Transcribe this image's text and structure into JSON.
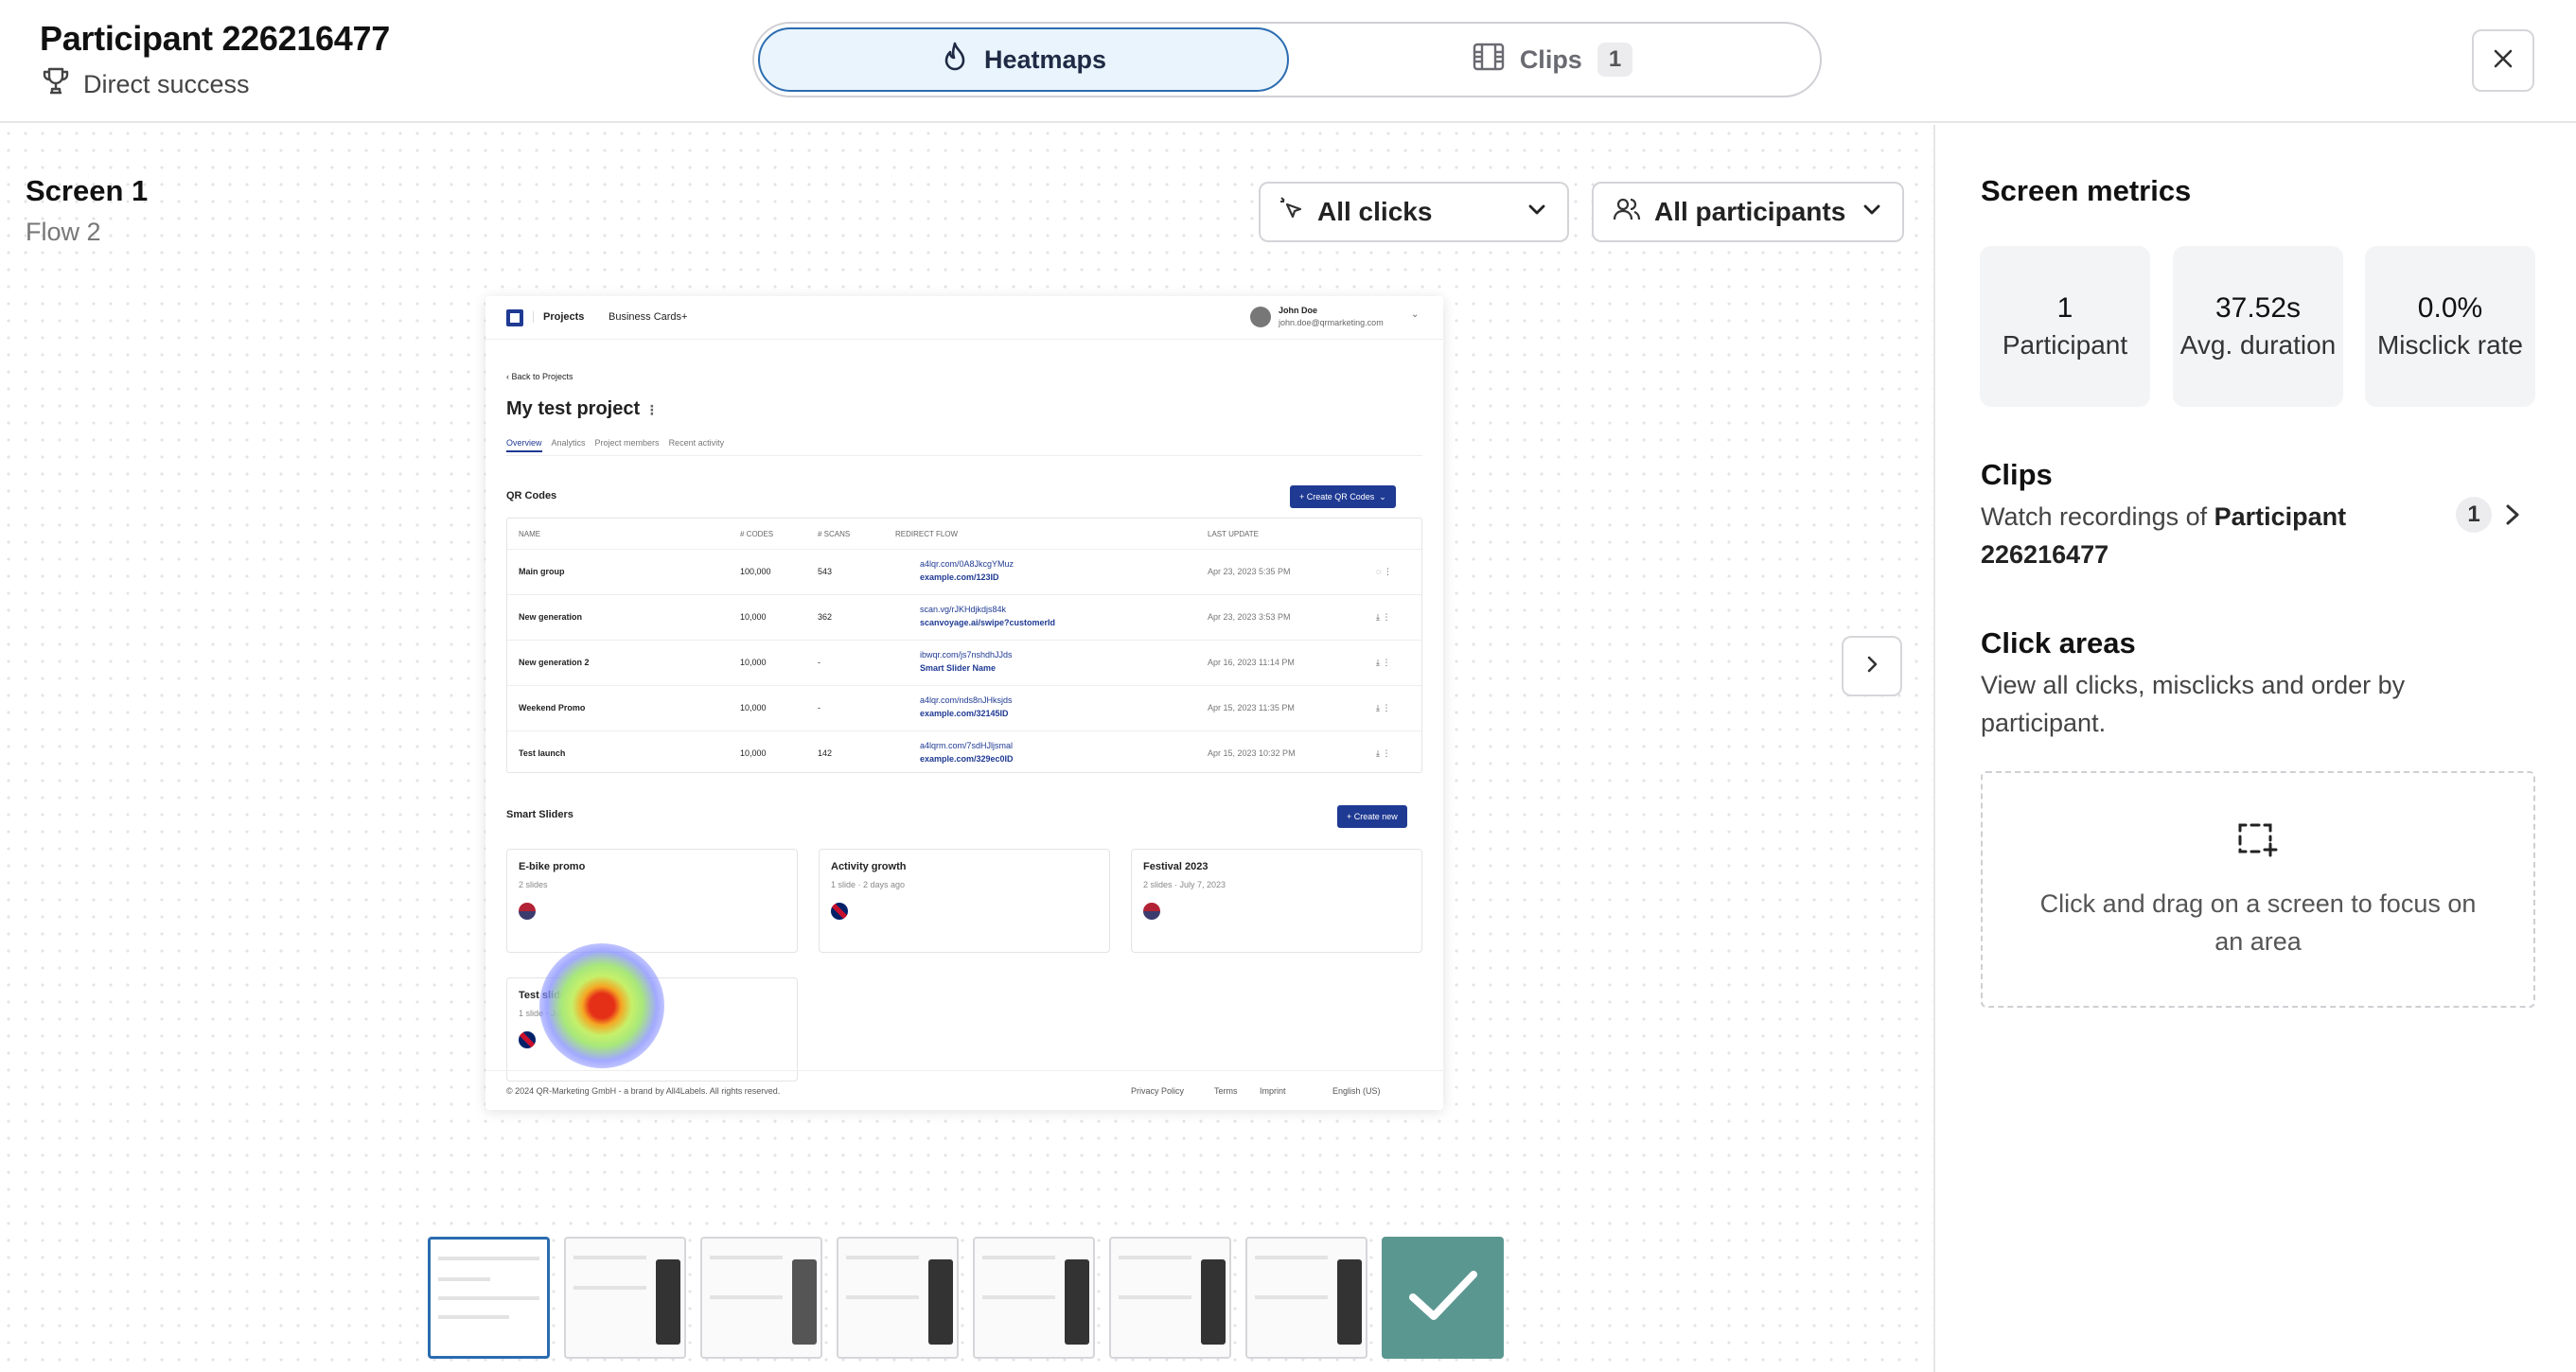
{
  "header": {
    "participant_title": "Participant 226216477",
    "status": "Direct success",
    "tabs": [
      {
        "label": "Heatmaps",
        "active": true
      },
      {
        "label": "Clips",
        "count": "1",
        "active": false
      }
    ]
  },
  "main": {
    "screen_title": "Screen 1",
    "flow": "Flow 2",
    "filters": {
      "clicks": "All clicks",
      "participants": "All participants"
    }
  },
  "mock": {
    "nav": [
      "Projects",
      "Business Cards+"
    ],
    "user_name": "John Doe",
    "user_email": "john.doe@qrmarketing.com",
    "back": "Back to Projects",
    "project_title": "My test project",
    "tabs": [
      "Overview",
      "Analytics",
      "Project members",
      "Recent activity"
    ],
    "qr_section": "QR Codes",
    "create_qr": "+ Create QR Codes",
    "columns": [
      "Name",
      "# Codes",
      "# Scans",
      "Redirect flow",
      "Last update"
    ],
    "rows": [
      {
        "name": "Main group",
        "codes": "100,000",
        "scans": "543",
        "url": "a4lqr.com/0A8JkcgYMuz",
        "flow": "example.com/123ID",
        "date": "Apr 23, 2023 5:35 PM"
      },
      {
        "name": "New generation",
        "codes": "10,000",
        "scans": "362",
        "url": "scan.vg/rJKHdjkdjs84k",
        "flow": "scanvoyage.ai/swipe?customerId",
        "date": "Apr 23, 2023 3:53 PM"
      },
      {
        "name": "New generation 2",
        "codes": "10,000",
        "scans": "-",
        "url": "ibwqr.com/js7nshdhJJds",
        "flow": "Smart Slider Name",
        "date": "Apr 16, 2023 11:14 PM"
      },
      {
        "name": "Weekend Promo",
        "codes": "10,000",
        "scans": "-",
        "url": "a4lqr.com/nds8nJHksjds",
        "flow": "example.com/32145ID",
        "date": "Apr 15, 2023 11:35 PM"
      },
      {
        "name": "Test launch",
        "codes": "10,000",
        "scans": "142",
        "url": "a4lqrm.com/7sdHJljsmal",
        "flow": "example.com/329ec0ID",
        "date": "Apr 15, 2023 10:32 PM"
      }
    ],
    "sliders_section": "Smart Sliders",
    "create_new": "+ Create new",
    "cards": [
      {
        "title": "E-bike promo",
        "sub": "2 slides"
      },
      {
        "title": "Activity growth",
        "sub": "1 slide · 2 days ago"
      },
      {
        "title": "Festival 2023",
        "sub": "2 slides · July 7, 2023"
      },
      {
        "title": "Test slider",
        "sub": "1 slide · July 7, 2023"
      }
    ],
    "footer": {
      "copyright": "© 2024 QR-Marketing GmbH - a brand by All4Labels. All rights reserved.",
      "links": [
        "Privacy Policy",
        "Terms",
        "Imprint"
      ],
      "language": "English (US)"
    }
  },
  "sidebar": {
    "metrics_title": "Screen metrics",
    "metrics": [
      {
        "value": "1",
        "label": "Participant"
      },
      {
        "value": "37.52s",
        "label": "Avg. duration"
      },
      {
        "value": "0.0%",
        "label": "Misclick rate"
      }
    ],
    "clips_title": "Clips",
    "clips_desc_prefix": "Watch recordings of",
    "clips_desc_bold": "Participant 226216477",
    "clips_count": "1",
    "click_areas_title": "Click areas",
    "click_areas_desc": "View all clicks, misclicks and order by participant.",
    "dropzone_text": "Click and drag on a screen to focus on an area"
  },
  "icons": {
    "status": "trophy-icon",
    "heatmaps": "flame-icon",
    "clips": "film-icon",
    "close": "close-icon",
    "clicks": "cursor-click-icon",
    "participants": "users-icon",
    "next": "chevron-right-icon",
    "add_area": "select-area-add-icon",
    "done": "check-icon"
  },
  "colors": {
    "accent": "#2b6cb0",
    "active_tab_bg": "#e9f4fd",
    "done_thumb": "#5b9791",
    "mock_brand": "#1f3a93"
  }
}
